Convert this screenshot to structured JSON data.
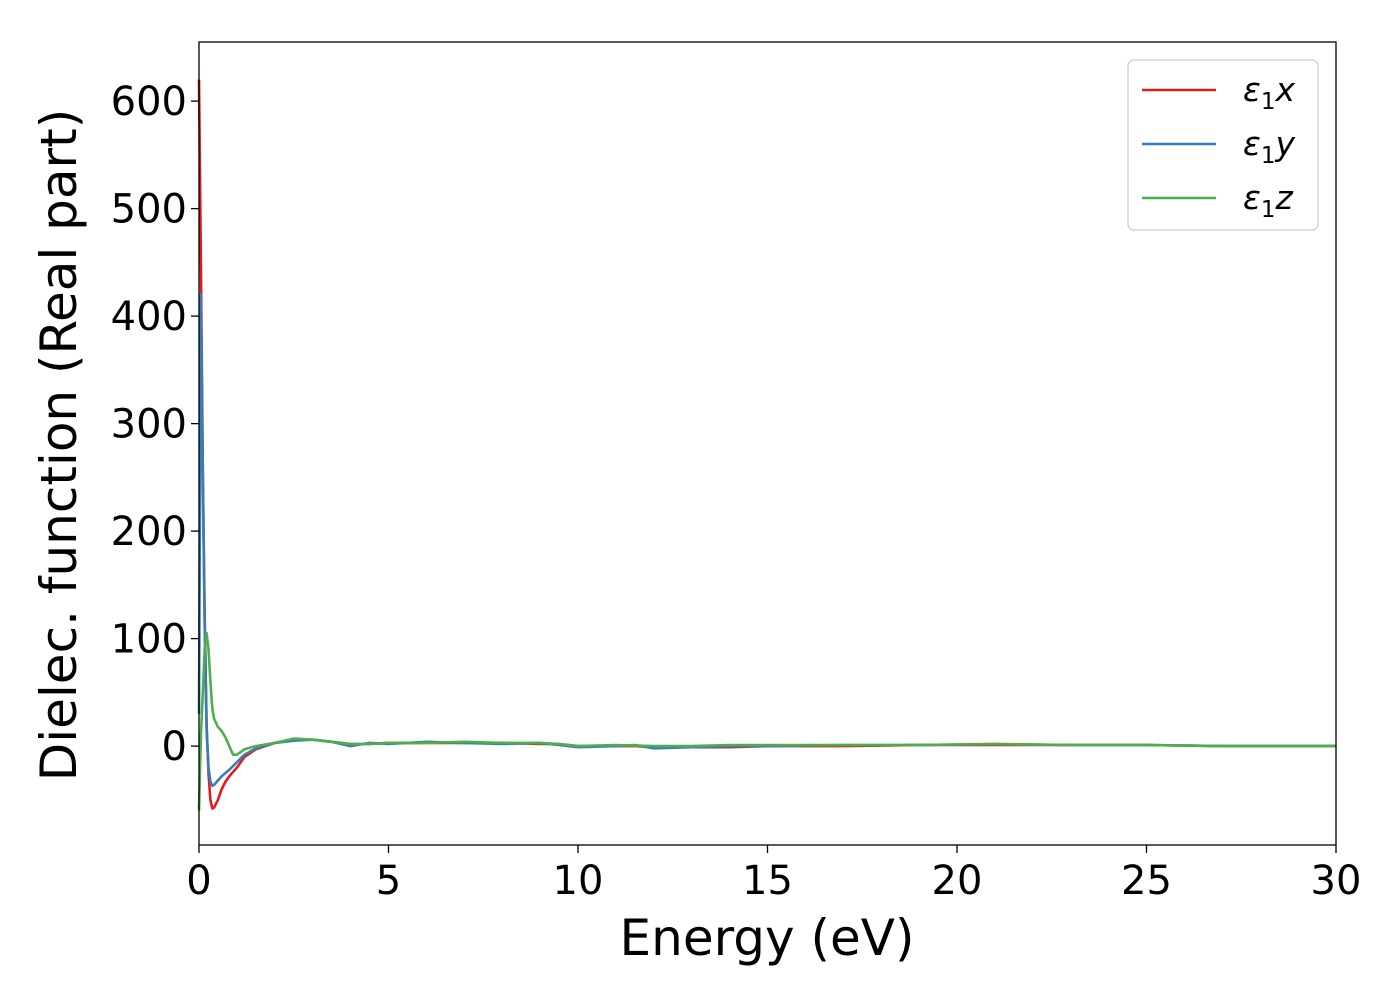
{
  "chart_data": {
    "type": "line",
    "title": "",
    "xlabel": "Energy (eV)",
    "ylabel": "Dielec. function (Real part)",
    "xlim": [
      0,
      30
    ],
    "ylim": [
      -92,
      655
    ],
    "xticks": [
      0,
      5,
      10,
      15,
      20,
      25,
      30
    ],
    "yticks": [
      0,
      100,
      200,
      300,
      400,
      500,
      600
    ],
    "grid": false,
    "legend_position": "top-right",
    "colors": {
      "x": "#e41a1c",
      "y": "#377eb8",
      "z": "#4daf4a"
    },
    "series": [
      {
        "name": "ε1x",
        "legend_base": "ε",
        "legend_sub": "1",
        "legend_var": "x",
        "color": "#e41a1c",
        "x": [
          0.0,
          0.05,
          0.1,
          0.15,
          0.2,
          0.25,
          0.3,
          0.35,
          0.4,
          0.5,
          0.6,
          0.7,
          0.8,
          1.0,
          1.2,
          1.5,
          2.0,
          2.5,
          3.0,
          3.5,
          4.0,
          4.5,
          5.0,
          6.0,
          7.0,
          8.0,
          9.0,
          9.5,
          10.0,
          11.0,
          11.5,
          12.0,
          13.0,
          14.0,
          15.0,
          17.0,
          19.0,
          21.0,
          23.0,
          25.0,
          27.0,
          30.0
        ],
        "y": [
          620,
          450,
          260,
          120,
          20,
          -25,
          -50,
          -58,
          -57,
          -50,
          -40,
          -33,
          -28,
          -20,
          -10,
          -3,
          3,
          6,
          6,
          4,
          2,
          2,
          3,
          3,
          3,
          3,
          2,
          2,
          0,
          0,
          0,
          -1,
          -1,
          -1,
          0,
          0,
          1,
          1,
          1,
          1,
          0,
          0
        ]
      },
      {
        "name": "ε1y",
        "legend_base": "ε",
        "legend_sub": "1",
        "legend_var": "y",
        "color": "#377eb8",
        "x": [
          0.0,
          0.05,
          0.1,
          0.15,
          0.2,
          0.25,
          0.3,
          0.35,
          0.4,
          0.5,
          0.6,
          0.7,
          0.8,
          1.0,
          1.2,
          1.5,
          2.0,
          2.5,
          3.0,
          3.5,
          4.0,
          4.5,
          5.0,
          6.0,
          7.0,
          8.0,
          9.0,
          9.5,
          10.0,
          11.0,
          11.5,
          12.0,
          13.0,
          14.0,
          15.0,
          17.0,
          19.0,
          21.0,
          23.0,
          25.0,
          27.0,
          30.0
        ],
        "y": [
          30,
          420,
          250,
          110,
          15,
          -20,
          -33,
          -37,
          -36,
          -32,
          -28,
          -25,
          -22,
          -15,
          -8,
          -2,
          3,
          5,
          6,
          4,
          0,
          3,
          2,
          4,
          3,
          2,
          3,
          1,
          -1,
          0,
          1,
          -2,
          -1,
          0,
          0,
          1,
          1,
          2,
          1,
          1,
          0,
          0
        ]
      },
      {
        "name": "ε1z",
        "legend_base": "ε",
        "legend_sub": "1",
        "legend_var": "z",
        "color": "#4daf4a",
        "x": [
          0.0,
          0.05,
          0.1,
          0.15,
          0.2,
          0.25,
          0.3,
          0.35,
          0.4,
          0.5,
          0.6,
          0.7,
          0.8,
          0.9,
          1.0,
          1.2,
          1.5,
          2.0,
          2.5,
          3.0,
          3.5,
          4.0,
          4.5,
          5.0,
          6.0,
          7.0,
          8.0,
          9.0,
          9.5,
          10.0,
          11.0,
          12.0,
          13.0,
          14.0,
          15.0,
          17.0,
          19.0,
          21.0,
          23.0,
          25.0,
          27.0,
          30.0
        ],
        "y": [
          -60,
          10,
          50,
          90,
          105,
          90,
          60,
          35,
          25,
          18,
          14,
          8,
          0,
          -8,
          -8,
          -3,
          0,
          3,
          7,
          6,
          4,
          2,
          2,
          3,
          3,
          4,
          3,
          3,
          2,
          0,
          1,
          0,
          0,
          1,
          1,
          1,
          1,
          2,
          1,
          1,
          0,
          0
        ]
      }
    ]
  }
}
